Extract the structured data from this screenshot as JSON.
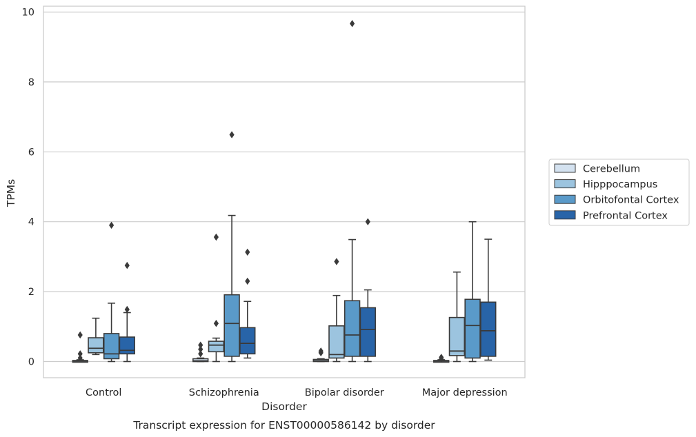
{
  "chart_data": {
    "type": "box",
    "title": "",
    "caption": "Transcript expression for ENST00000586142 by disorder",
    "xlabel": "Disorder",
    "ylabel": "TPMs",
    "ylim": [
      -0.45,
      10.2
    ],
    "yticks": [
      0,
      2,
      4,
      6,
      8,
      10
    ],
    "grid": "horizontal",
    "legend_position": "right",
    "categories": [
      "Control",
      "Schizophrenia",
      "Bipolar disorder",
      "Major depression"
    ],
    "series": [
      {
        "name": "Cerebellum",
        "color": "#d4e2f0",
        "boxes": [
          {
            "q1": 0.0,
            "median": 0.01,
            "q3": 0.03,
            "whisker_low": 0.0,
            "whisker_high": 0.05,
            "outliers": [
              0.1,
              0.22,
              0.76
            ]
          },
          {
            "q1": 0.0,
            "median": 0.02,
            "q3": 0.08,
            "whisker_low": 0.0,
            "whisker_high": 0.1,
            "outliers": [
              0.22,
              0.35,
              0.47
            ]
          },
          {
            "q1": 0.0,
            "median": 0.02,
            "q3": 0.06,
            "whisker_low": 0.0,
            "whisker_high": 0.08,
            "outliers": [
              0.25,
              0.3
            ]
          },
          {
            "q1": 0.0,
            "median": 0.01,
            "q3": 0.03,
            "whisker_low": 0.0,
            "whisker_high": 0.05,
            "outliers": [
              0.07,
              0.12
            ]
          }
        ]
      },
      {
        "name": "Hipppocampus",
        "color": "#9cc4df",
        "boxes": [
          {
            "q1": 0.25,
            "median": 0.38,
            "q3": 0.68,
            "whisker_low": 0.2,
            "whisker_high": 1.24,
            "outliers": []
          },
          {
            "q1": 0.28,
            "median": 0.47,
            "q3": 0.58,
            "whisker_low": 0.0,
            "whisker_high": 0.67,
            "outliers": [
              1.09,
              3.56
            ]
          },
          {
            "q1": 0.1,
            "median": 0.2,
            "q3": 1.02,
            "whisker_low": 0.0,
            "whisker_high": 1.89,
            "outliers": [
              2.86
            ]
          },
          {
            "q1": 0.17,
            "median": 0.3,
            "q3": 1.26,
            "whisker_low": 0.0,
            "whisker_high": 2.56,
            "outliers": []
          }
        ]
      },
      {
        "name": "Orbitofontal Cortex",
        "color": "#5a9ac9",
        "boxes": [
          {
            "q1": 0.08,
            "median": 0.22,
            "q3": 0.8,
            "whisker_low": 0.0,
            "whisker_high": 1.67,
            "outliers": [
              3.9
            ]
          },
          {
            "q1": 0.15,
            "median": 1.09,
            "q3": 1.91,
            "whisker_low": 0.0,
            "whisker_high": 4.18,
            "outliers": [
              6.49
            ]
          },
          {
            "q1": 0.15,
            "median": 0.76,
            "q3": 1.74,
            "whisker_low": 0.0,
            "whisker_high": 3.49,
            "outliers": [
              9.67
            ]
          },
          {
            "q1": 0.1,
            "median": 1.03,
            "q3": 1.78,
            "whisker_low": 0.0,
            "whisker_high": 4.0,
            "outliers": []
          }
        ]
      },
      {
        "name": "Prefrontal Cortex",
        "color": "#2864a8",
        "boxes": [
          {
            "q1": 0.22,
            "median": 0.32,
            "q3": 0.7,
            "whisker_low": 0.0,
            "whisker_high": 1.4,
            "outliers": [
              1.49,
              2.75
            ]
          },
          {
            "q1": 0.22,
            "median": 0.52,
            "q3": 0.97,
            "whisker_low": 0.1,
            "whisker_high": 1.72,
            "outliers": [
              2.3,
              3.13
            ]
          },
          {
            "q1": 0.15,
            "median": 0.92,
            "q3": 1.54,
            "whisker_low": 0.0,
            "whisker_high": 2.05,
            "outliers": [
              4.0
            ]
          },
          {
            "q1": 0.15,
            "median": 0.88,
            "q3": 1.7,
            "whisker_low": 0.04,
            "whisker_high": 3.5,
            "outliers": []
          }
        ]
      }
    ]
  },
  "style": {
    "line_color": "#3a3a3a",
    "grid_color": "#cccccc",
    "frame_color": "#cccccc"
  }
}
